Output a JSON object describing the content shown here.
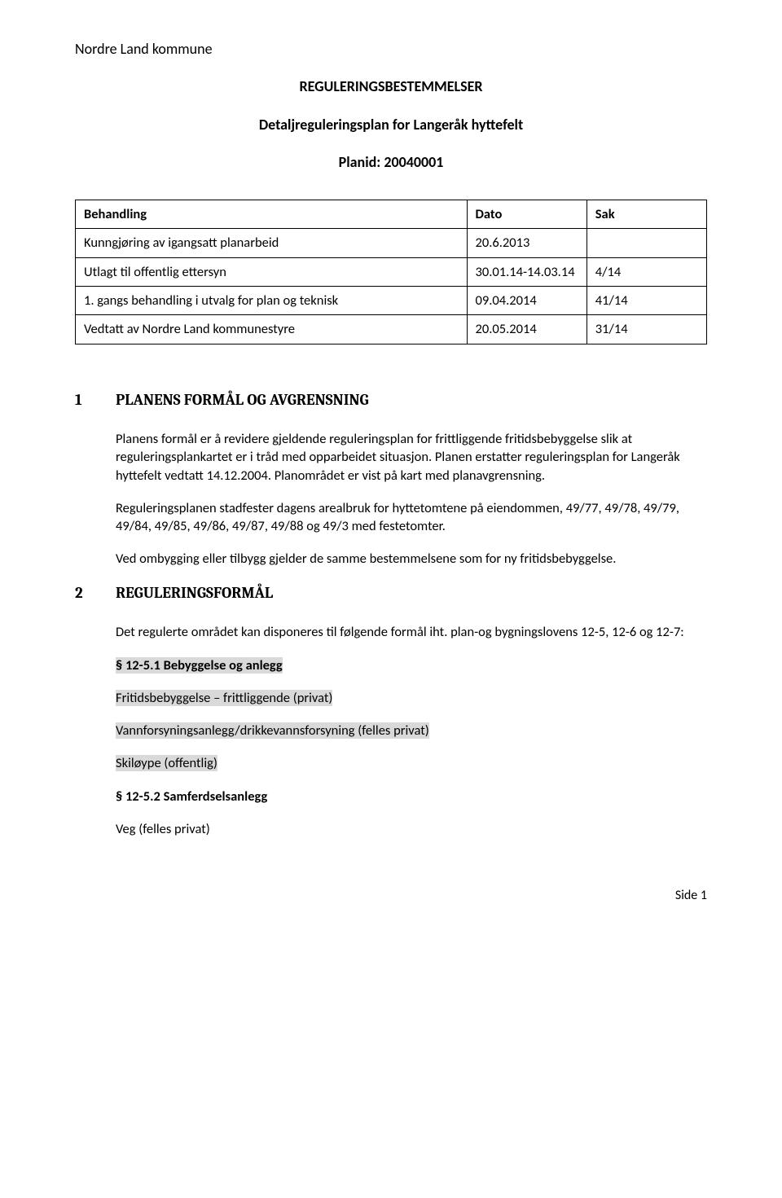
{
  "header": {
    "municipality": "Nordre Land kommune",
    "title": "REGULERINGSBESTEMMELSER",
    "subtitle": "Detaljreguleringsplan for Langeråk hyttefelt",
    "planid": "Planid: 20040001"
  },
  "table": {
    "columns": [
      "Behandling",
      "Dato",
      "Sak"
    ],
    "rows": [
      {
        "beh": "Kunngjøring av igangsatt planarbeid",
        "dato": "20.6.2013",
        "sak": ""
      },
      {
        "beh": "Utlagt til offentlig ettersyn",
        "dato": "30.01.14-14.03.14",
        "sak": "4/14"
      },
      {
        "beh": "1. gangs behandling i utvalg for plan og teknisk",
        "dato": "09.04.2014",
        "sak": "41/14"
      },
      {
        "beh": "Vedtatt av Nordre Land kommunestyre",
        "dato": "20.05.2014",
        "sak": "31/14"
      }
    ]
  },
  "sections": {
    "s1": {
      "num": "1",
      "title": "PLANENS FORMÅL OG AVGRENSNING",
      "p1": "Planens formål er å revidere gjeldende reguleringsplan for frittliggende fritidsbebyggelse slik at reguleringsplankartet er i tråd med opparbeidet situasjon. Planen erstatter reguleringsplan for Langeråk hyttefelt vedtatt 14.12.2004. Planområdet er vist på kart med planavgrensning.",
      "p2": "Reguleringsplanen stadfester dagens arealbruk for hyttetomtene på eiendommen, 49/77, 49/78, 49/79, 49/84, 49/85, 49/86, 49/87, 49/88 og 49/3 med festetomter.",
      "p3": "Ved ombygging eller tilbygg gjelder de samme bestemmelsene som for ny fritidsbebyggelse."
    },
    "s2": {
      "num": "2",
      "title": "REGULERINGSFORMÅL",
      "intro": "Det regulerte området kan disponeres til følgende formål iht. plan-og bygningslovens 12-5, 12-6 og 12-7:",
      "sub1_title": "§ 12-5.1 Bebyggelse og anlegg",
      "sub1_items": [
        "Fritidsbebyggelse – frittliggende (privat)",
        "Vannforsyningsanlegg/drikkevannsforsyning (felles privat)",
        "Skiløype (offentlig)"
      ],
      "sub2_title": "§ 12-5.2 Samferdselsanlegg",
      "sub2_items": [
        "Veg (felles privat)"
      ]
    }
  },
  "footer": {
    "page": "Side 1"
  }
}
